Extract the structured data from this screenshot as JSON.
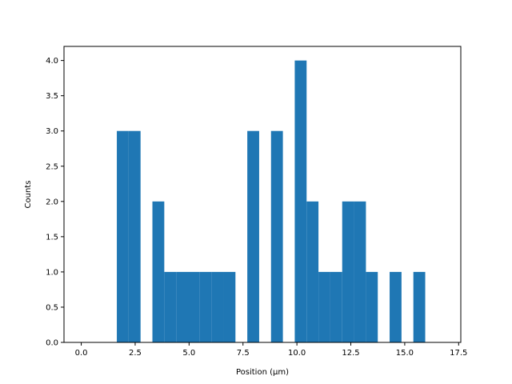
{
  "chart_data": {
    "type": "bar",
    "title": "",
    "xlabel": "Position (μm)",
    "ylabel": "Counts",
    "xlim": [
      -0.8,
      17.6
    ],
    "ylim": [
      0,
      4.2
    ],
    "grid": false,
    "bar_color": "#1f77b4",
    "bin_width": 0.55,
    "x_ticks": [
      0.0,
      2.5,
      5.0,
      7.5,
      10.0,
      12.5,
      15.0,
      17.5
    ],
    "x_tick_labels": [
      "0.0",
      "2.5",
      "5.0",
      "7.5",
      "10.0",
      "12.5",
      "15.0",
      "17.5"
    ],
    "y_ticks": [
      0.0,
      0.5,
      1.0,
      1.5,
      2.0,
      2.5,
      3.0,
      3.5,
      4.0
    ],
    "y_tick_labels": [
      "0.0",
      "0.5",
      "1.0",
      "1.5",
      "2.0",
      "2.5",
      "3.0",
      "3.5",
      "4.0"
    ],
    "bins": [
      {
        "x": 0.0,
        "count": 0
      },
      {
        "x": 0.55,
        "count": 0
      },
      {
        "x": 1.1,
        "count": 0
      },
      {
        "x": 1.65,
        "count": 3
      },
      {
        "x": 2.2,
        "count": 3
      },
      {
        "x": 2.75,
        "count": 0
      },
      {
        "x": 3.3,
        "count": 2
      },
      {
        "x": 3.85,
        "count": 1
      },
      {
        "x": 4.4,
        "count": 1
      },
      {
        "x": 4.95,
        "count": 1
      },
      {
        "x": 5.5,
        "count": 1
      },
      {
        "x": 6.05,
        "count": 1
      },
      {
        "x": 6.6,
        "count": 1
      },
      {
        "x": 7.15,
        "count": 0
      },
      {
        "x": 7.7,
        "count": 3
      },
      {
        "x": 8.25,
        "count": 0
      },
      {
        "x": 8.8,
        "count": 3
      },
      {
        "x": 9.35,
        "count": 0
      },
      {
        "x": 9.9,
        "count": 4
      },
      {
        "x": 10.45,
        "count": 2
      },
      {
        "x": 11.0,
        "count": 1
      },
      {
        "x": 11.55,
        "count": 1
      },
      {
        "x": 12.1,
        "count": 2
      },
      {
        "x": 12.65,
        "count": 2
      },
      {
        "x": 13.2,
        "count": 1
      },
      {
        "x": 13.75,
        "count": 0
      },
      {
        "x": 14.3,
        "count": 1
      },
      {
        "x": 14.85,
        "count": 0
      },
      {
        "x": 15.4,
        "count": 1
      },
      {
        "x": 15.95,
        "count": 0
      },
      {
        "x": 16.5,
        "count": 0
      }
    ]
  }
}
